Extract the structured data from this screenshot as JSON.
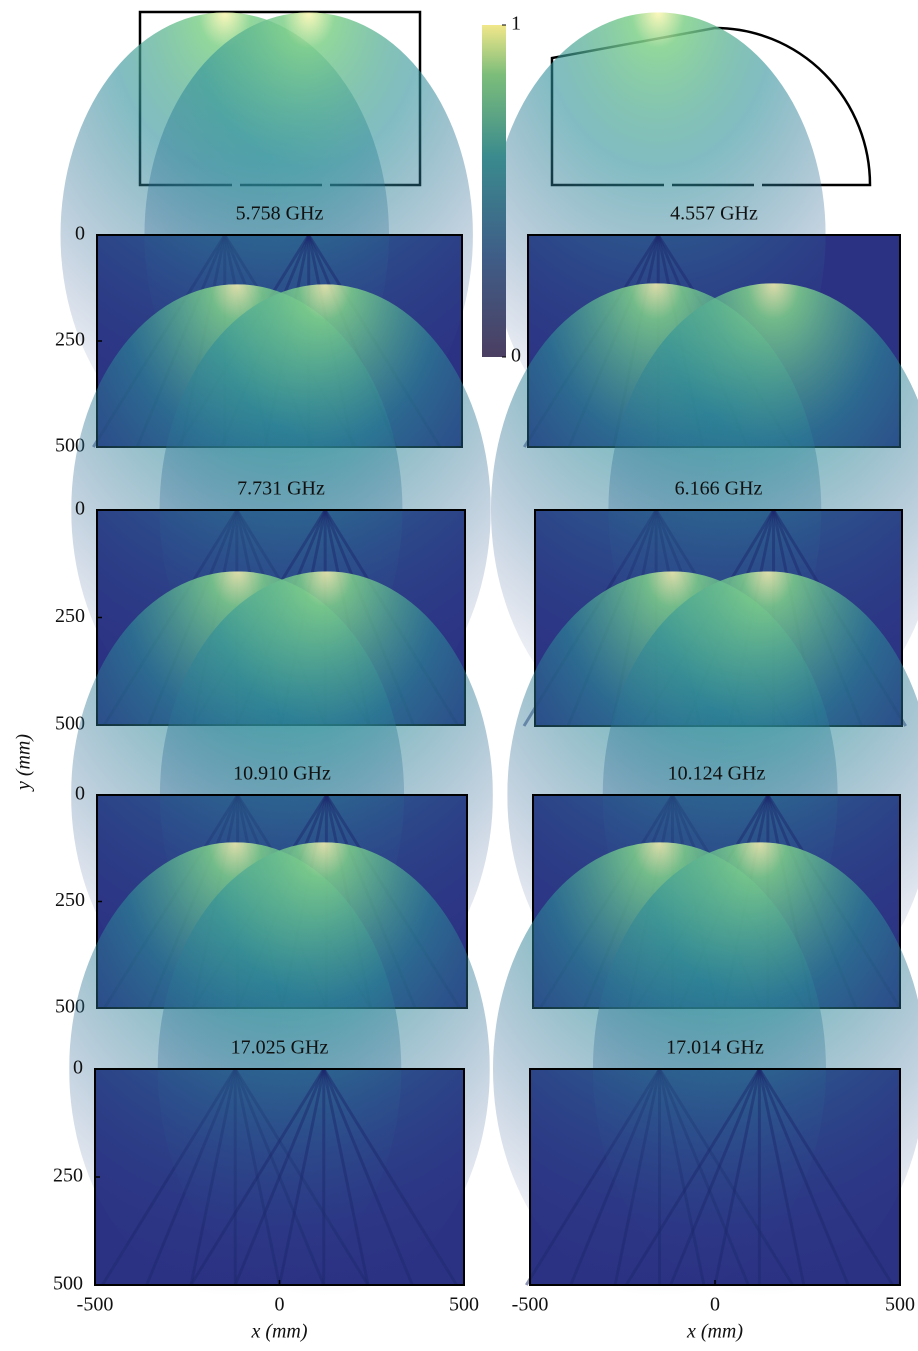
{
  "chart_data": [
    {
      "type": "heatmap",
      "title": "5.758 GHz",
      "xlim": [
        -500,
        500
      ],
      "ylim": [
        0,
        500
      ],
      "yticks": [
        0,
        250,
        500
      ]
    },
    {
      "type": "heatmap",
      "title": "4.557 GHz",
      "xlim": [
        -500,
        500
      ],
      "ylim": [
        0,
        500
      ]
    },
    {
      "type": "heatmap",
      "title": "7.731 GHz",
      "xlim": [
        -500,
        500
      ],
      "ylim": [
        0,
        500
      ],
      "yticks": [
        0,
        250,
        500
      ],
      "ylabel": "y (mm)"
    },
    {
      "type": "heatmap",
      "title": "6.166 GHz",
      "xlim": [
        -500,
        500
      ],
      "ylim": [
        0,
        500
      ]
    },
    {
      "type": "heatmap",
      "title": "10.910 GHz",
      "xlim": [
        -500,
        500
      ],
      "ylim": [
        0,
        500
      ],
      "yticks": [
        0,
        250,
        500
      ]
    },
    {
      "type": "heatmap",
      "title": "10.124 GHz",
      "xlim": [
        -500,
        500
      ],
      "ylim": [
        0,
        500
      ]
    },
    {
      "type": "heatmap",
      "title": "17.025 GHz",
      "xlim": [
        -500,
        500
      ],
      "ylim": [
        0,
        500
      ],
      "yticks": [
        0,
        250,
        500
      ],
      "xticks": [
        -500,
        0,
        500
      ],
      "xlabel": "x (mm)"
    },
    {
      "type": "heatmap",
      "title": "17.014 GHz",
      "xlim": [
        -500,
        500
      ],
      "ylim": [
        0,
        500
      ],
      "xticks": [
        -500,
        0,
        500
      ],
      "xlabel": "x (mm)"
    },
    {
      "type": "colorbar",
      "clim": [
        0,
        1
      ],
      "ticks": [
        0,
        1
      ]
    }
  ]
}
